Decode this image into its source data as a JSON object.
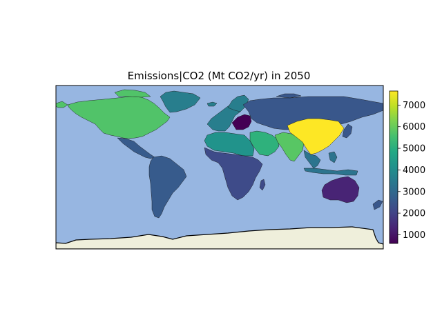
{
  "title": "Emissions|CO2 (Mt CO2/yr) in 2050",
  "chart_data": {
    "type": "choropleth",
    "title": "Emissions|CO2 (Mt CO2/yr) in 2050",
    "colorbar": {
      "colormap": "viridis",
      "min": 600,
      "max": 7650,
      "ticks": [
        1000,
        2000,
        3000,
        4000,
        5000,
        6000,
        7000
      ],
      "tick_labels": [
        "1000",
        "2000",
        "3000",
        "4000",
        "5000",
        "6000",
        "7000"
      ]
    },
    "ocean_color": "#97b6e1",
    "antarctica_color": "#efefdb",
    "regions": [
      {
        "region": "North America",
        "value": 5700
      },
      {
        "region": "Latin America",
        "value": 2600
      },
      {
        "region": "Northern Africa",
        "value": 4200
      },
      {
        "region": "Sub-Saharan Africa",
        "value": 2200
      },
      {
        "region": "Western Europe",
        "value": 3600
      },
      {
        "region": "Central Europe",
        "value": 600
      },
      {
        "region": "Former Soviet Union",
        "value": 2500
      },
      {
        "region": "Middle East",
        "value": 5100
      },
      {
        "region": "South Asia",
        "value": 5800
      },
      {
        "region": "China",
        "value": 7650
      },
      {
        "region": "Pacific OECD",
        "value": 2500
      },
      {
        "region": "Southeast Asia",
        "value": 3300
      },
      {
        "region": "Oceania",
        "value": 1300
      }
    ]
  }
}
